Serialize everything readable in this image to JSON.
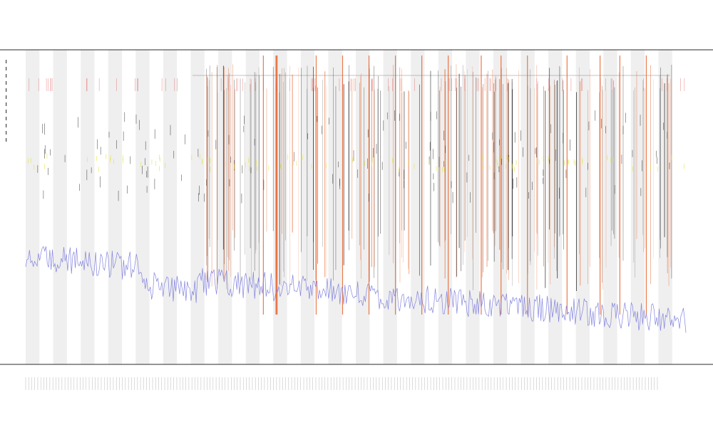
{
  "chart_data": {
    "type": "line",
    "title": "",
    "subtitle_1": "",
    "subtitle_2": "",
    "xlabel": "",
    "ylabel": "",
    "grid": false,
    "legend": "top-left",
    "x_tick_count": 210,
    "x_band_count": 24,
    "colors": {
      "baseline": "#7777dd",
      "events_primary": "#e8622a",
      "events_secondary": "#e0e030",
      "ticks": "#222222",
      "band": "#efefef",
      "frame": "#555555",
      "top_markers": "#e05555"
    },
    "series": [
      {
        "x_range": [
          0,
          1
        ],
        "y_range": [
          0,
          1
        ],
        "baseline_level_start": 0.34,
        "baseline_level_end": 0.17,
        "event_segments": [
          {
            "start": 0.27,
            "end": 0.98
          }
        ],
        "peak_positions": [
          0.36,
          0.38,
          0.44,
          0.48,
          0.52,
          0.56,
          0.6,
          0.64,
          0.69,
          0.72,
          0.76,
          0.82,
          0.87,
          0.9,
          0.94
        ]
      }
    ]
  }
}
